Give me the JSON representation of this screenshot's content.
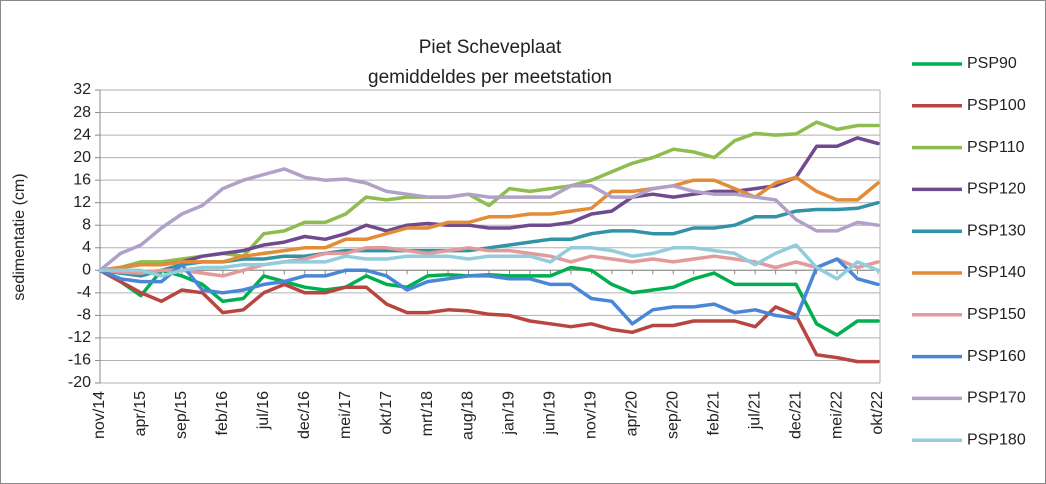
{
  "chart_data": {
    "type": "line",
    "title": "Piet Scheveplaat",
    "subtitle": "gemiddeldes per meetstation",
    "y_label": "sedimentatie (cm)",
    "grid": true,
    "legend": "right",
    "ylim": [
      -20,
      32
    ],
    "yticks": [
      -20,
      -16,
      -12,
      -8,
      -4,
      0,
      4,
      8,
      12,
      16,
      20,
      24,
      28,
      32
    ],
    "categories": [
      "nov/14",
      null,
      "apr/15",
      null,
      "sep/15",
      null,
      "feb/16",
      null,
      "jul/16",
      null,
      "dec/16",
      null,
      "mei/17",
      null,
      "okt/17",
      null,
      "mrt/18",
      null,
      "aug/18",
      null,
      "jan/19",
      null,
      "jun/19",
      null,
      "nov/19",
      null,
      "apr/20",
      null,
      "sep/20",
      null,
      "feb/21",
      null,
      "jul/21",
      null,
      "dec/21",
      null,
      "mei/22",
      null,
      "okt/22"
    ],
    "series": [
      {
        "name": "PSP90",
        "color": "#00b050",
        "values": [
          0,
          -2,
          -4.5,
          0,
          -1,
          -2.5,
          -5.5,
          -5,
          -1,
          -2,
          -3,
          -3.5,
          -3,
          -1,
          -2.5,
          -3,
          -1,
          -0.8,
          -1,
          -0.8,
          -1,
          -1,
          -1,
          0.5,
          0,
          -2.5,
          -4,
          -3.5,
          -3,
          -1.5,
          -0.5,
          -2.5,
          -2.5,
          -2.5,
          -2.5,
          -9.5,
          -11.5,
          -9,
          -9
        ]
      },
      {
        "name": "PSP100",
        "color": "#b8453f",
        "values": [
          0,
          -2,
          -4,
          -5.5,
          -3.5,
          -4,
          -7.5,
          -7,
          -4,
          -2.5,
          -4,
          -4,
          -3,
          -3,
          -6,
          -7.5,
          -7.5,
          -7,
          -7.2,
          -7.8,
          -8,
          -9,
          -9.5,
          -10,
          -9.5,
          -10.5,
          -11,
          -9.8,
          -9.8,
          -9,
          -9,
          -9,
          -10,
          -6.5,
          -8,
          -15,
          -15.5,
          -16.2,
          -16.2
        ]
      },
      {
        "name": "PSP110",
        "color": "#8fbc4f",
        "values": [
          0,
          0.5,
          1.5,
          1.5,
          2,
          2.5,
          3,
          2.5,
          6.5,
          7,
          8.5,
          8.5,
          10,
          13,
          12.5,
          13,
          13,
          13,
          13.5,
          11.5,
          14.5,
          14,
          14.5,
          15,
          16,
          17.5,
          19,
          20,
          21.5,
          21,
          20,
          23,
          24.3,
          24,
          24.2,
          26.3,
          25,
          25.7,
          25.7
        ]
      },
      {
        "name": "PSP120",
        "color": "#6f4a8e",
        "values": [
          0,
          0.5,
          1,
          1,
          1.5,
          2.5,
          3,
          3.5,
          4.5,
          5,
          6,
          5.5,
          6.5,
          8,
          7,
          8,
          8.3,
          8,
          8,
          7.5,
          7.5,
          8,
          8,
          8.5,
          10,
          10.5,
          13,
          13.5,
          13,
          13.5,
          14,
          14,
          14.5,
          15,
          16.5,
          22,
          22,
          23.5,
          22.5
        ]
      },
      {
        "name": "PSP130",
        "color": "#3292a6",
        "values": [
          0,
          -0.5,
          -1,
          0,
          1,
          1.5,
          1.5,
          2,
          2,
          2.5,
          2.5,
          3,
          3.5,
          3.5,
          3.5,
          3.5,
          3.5,
          3.5,
          3.5,
          4,
          4.5,
          5,
          5.5,
          5.5,
          6.5,
          7,
          7,
          6.5,
          6.5,
          7.5,
          7.5,
          8,
          9.5,
          9.5,
          10.5,
          10.8,
          10.8,
          11,
          12
        ]
      },
      {
        "name": "PSP140",
        "color": "#e48b35",
        "values": [
          0,
          0.5,
          1,
          1,
          1.5,
          1.5,
          1.5,
          2.5,
          3,
          3.5,
          4,
          4,
          5.5,
          5.5,
          6.5,
          7.5,
          7.5,
          8.5,
          8.5,
          9.5,
          9.5,
          10,
          10,
          10.5,
          11,
          14,
          14,
          14.5,
          15,
          16,
          16,
          14.5,
          13,
          15.5,
          16.5,
          14,
          12.5,
          12.5,
          15.5
        ]
      },
      {
        "name": "PSP150",
        "color": "#e39a9a",
        "values": [
          0,
          -0.3,
          -0.5,
          0,
          0,
          -0.5,
          -1,
          0,
          1,
          1.5,
          2,
          3,
          3,
          4,
          4,
          3.5,
          3,
          3.5,
          4,
          3.5,
          3.5,
          3,
          2.5,
          1.5,
          2.5,
          2,
          1.5,
          2,
          1.5,
          2,
          2.5,
          2,
          1.5,
          0.5,
          1.5,
          0.5,
          2,
          0.5,
          1.5
        ]
      },
      {
        "name": "PSP160",
        "color": "#4a86d8",
        "values": [
          0,
          -1.5,
          -2,
          -2,
          1,
          -3.5,
          -4,
          -3.5,
          -2.5,
          -2,
          -1,
          -1,
          0,
          0,
          -1,
          -3.5,
          -2,
          -1.5,
          -1,
          -1,
          -1.5,
          -1.5,
          -2.5,
          -2.5,
          -5,
          -5.5,
          -9.5,
          -7,
          -6.5,
          -6.5,
          -6,
          -7.5,
          -7,
          -8,
          -8.5,
          0.5,
          2,
          -1.5,
          -2.5
        ]
      },
      {
        "name": "PSP170",
        "color": "#b1a0c7",
        "values": [
          0,
          3,
          4.5,
          7.5,
          10,
          11.5,
          14.5,
          16,
          17,
          18,
          16.5,
          16,
          16.2,
          15.5,
          14,
          13.5,
          13,
          13,
          13.5,
          13,
          13,
          13,
          13,
          15,
          15,
          13,
          13,
          14.5,
          15,
          14,
          13.5,
          13.5,
          13,
          12.5,
          9,
          7,
          7,
          8.5,
          8
        ]
      },
      {
        "name": "PSP180",
        "color": "#93cddd",
        "values": [
          0,
          0,
          0,
          -1,
          0,
          0.5,
          0.5,
          1,
          1,
          1.5,
          1.5,
          1.5,
          2.5,
          2,
          2,
          2.5,
          2.5,
          2.5,
          2,
          2.5,
          2.5,
          2.5,
          1.5,
          4,
          4,
          3.5,
          2.5,
          3,
          4,
          4,
          3.5,
          3,
          1,
          3,
          4.5,
          0.5,
          -1.5,
          1.5,
          0
        ]
      }
    ]
  }
}
